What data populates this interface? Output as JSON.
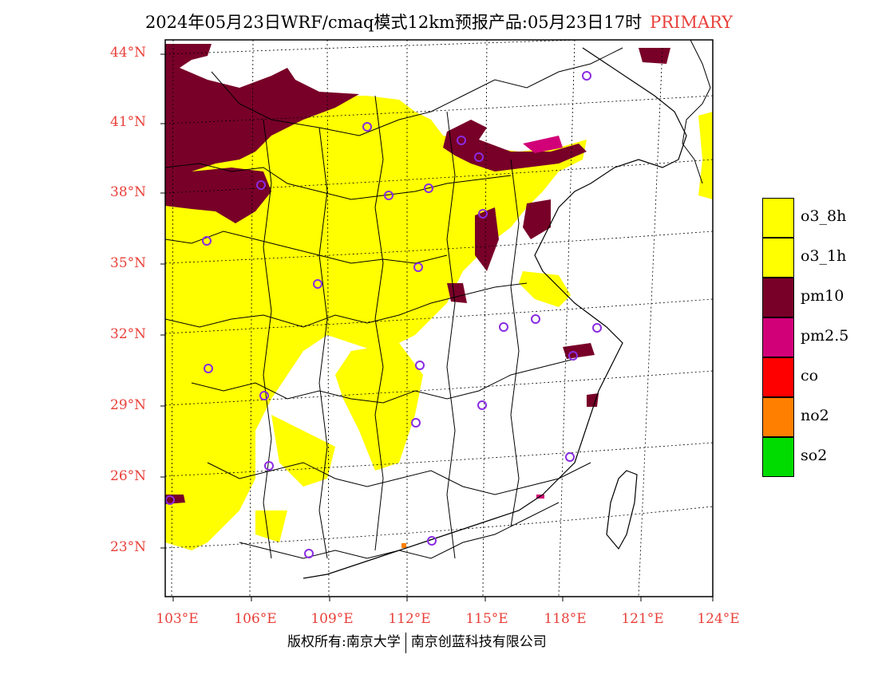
{
  "title": {
    "main": "2024年05月23日WRF/cmaq模式12km预报产品:05月23日17时",
    "tag": "PRIMARY"
  },
  "lat_labels": [
    "44°N",
    "41°N",
    "38°N",
    "35°N",
    "32°N",
    "29°N",
    "26°N",
    "23°N"
  ],
  "lon_labels": [
    "103°E",
    "106°E",
    "109°E",
    "112°E",
    "115°E",
    "118°E",
    "121°E",
    "124°E"
  ],
  "legend": [
    {
      "label": "o3_8h",
      "color": "#ffff00"
    },
    {
      "label": "o3_1h",
      "color": "#ffff00"
    },
    {
      "label": "pm10",
      "color": "#780028"
    },
    {
      "label": "pm2.5",
      "color": "#d20078"
    },
    {
      "label": "co",
      "color": "#ff0000"
    },
    {
      "label": "no2",
      "color": "#ff7f00"
    },
    {
      "label": "so2",
      "color": "#00dc00"
    }
  ],
  "footer": {
    "left": "版权所有:南京大学",
    "right": "南京创蓝科技有限公司"
  },
  "colors": {
    "accent": "#e8403a",
    "o3": "#ffff00",
    "pm10": "#780028",
    "pm25": "#d20078",
    "station": "#8a2be2"
  }
}
